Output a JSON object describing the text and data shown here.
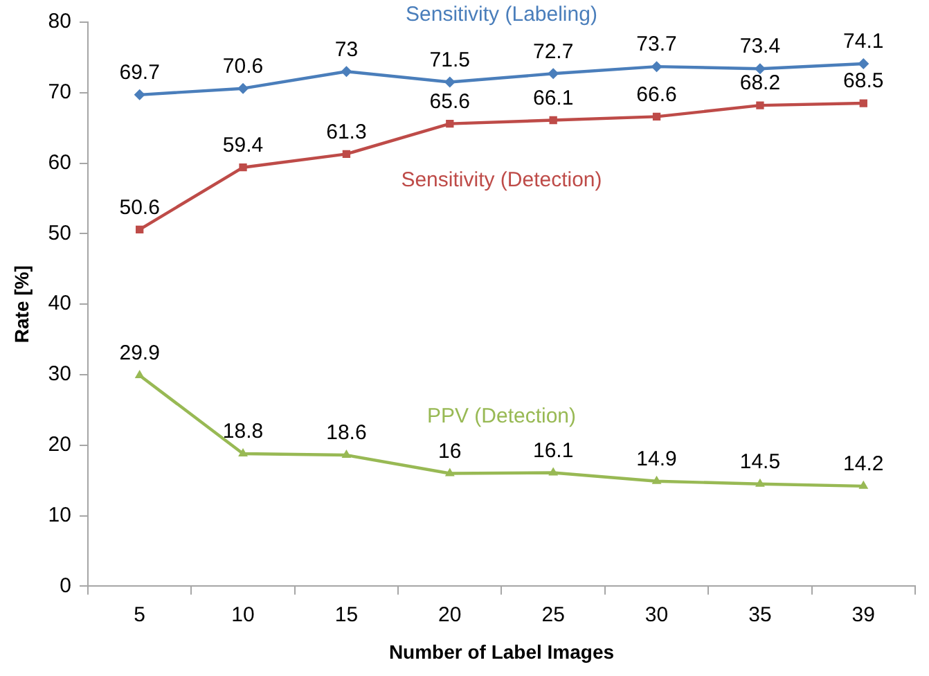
{
  "chart_data": {
    "type": "line",
    "xlabel": "Number of Label Images",
    "ylabel": "Rate [%]",
    "categories": [
      "5",
      "10",
      "15",
      "20",
      "25",
      "30",
      "35",
      "39"
    ],
    "series": [
      {
        "name": "Sensitivity (Labeling)",
        "color": "#4a7ebb",
        "marker": "diamond",
        "values": [
          69.7,
          70.6,
          73,
          71.5,
          72.7,
          73.7,
          73.4,
          74.1
        ]
      },
      {
        "name": "Sensitivity (Detection)",
        "color": "#be4b48",
        "marker": "square",
        "values": [
          50.6,
          59.4,
          61.3,
          65.6,
          66.1,
          66.6,
          68.2,
          68.5
        ]
      },
      {
        "name": "PPV (Detection)",
        "color": "#98b954",
        "marker": "triangle",
        "values": [
          29.9,
          18.8,
          18.6,
          16,
          16.1,
          14.9,
          14.5,
          14.2
        ]
      }
    ],
    "ylim": [
      0,
      80
    ],
    "yticks": [
      0,
      10,
      20,
      30,
      40,
      50,
      60,
      70,
      80
    ],
    "grid": false,
    "legend": false,
    "data_labels": true,
    "line_style": "solid"
  }
}
